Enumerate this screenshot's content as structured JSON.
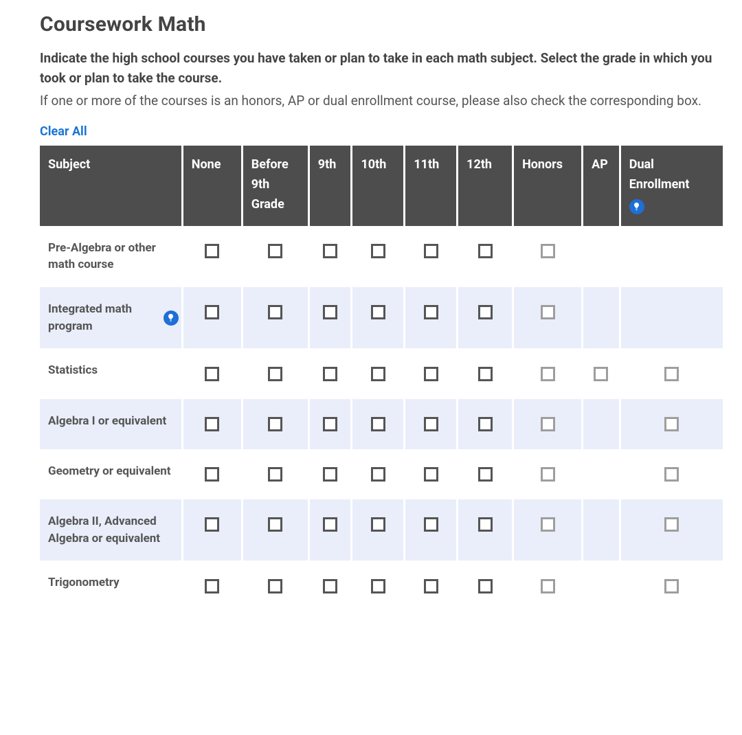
{
  "title": "Coursework Math",
  "intro_bold": "Indicate the high school courses you have taken or plan to take in each math subject. Select the grade in which you took or plan to take the course.",
  "intro_normal": "If one or more of the courses is an honors, AP or dual enrollment course, please also check the corresponding box.",
  "clear_all": "Clear All",
  "columns": [
    {
      "key": "subject",
      "label": "Subject"
    },
    {
      "key": "none",
      "label": "None"
    },
    {
      "key": "before9",
      "label": "Before 9th Grade"
    },
    {
      "key": "g9",
      "label": "9th"
    },
    {
      "key": "g10",
      "label": "10th"
    },
    {
      "key": "g11",
      "label": "11th"
    },
    {
      "key": "g12",
      "label": "12th"
    },
    {
      "key": "honors",
      "label": "Honors"
    },
    {
      "key": "ap",
      "label": "AP"
    },
    {
      "key": "dual",
      "label": "Dual Enrollment",
      "info": true
    }
  ],
  "checkbox_style": {
    "dark_cols": [
      "none",
      "before9",
      "g9",
      "g10",
      "g11",
      "g12"
    ],
    "light_cols": [
      "honors",
      "ap",
      "dual"
    ],
    "dark_border": "#555555",
    "light_border": "#9e9e9e"
  },
  "rows": [
    {
      "subject": "Pre-Algebra or other math course",
      "info": false,
      "cells": {
        "none": true,
        "before9": true,
        "g9": true,
        "g10": true,
        "g11": true,
        "g12": true,
        "honors": true,
        "ap": false,
        "dual": false
      }
    },
    {
      "subject": "Integrated math program",
      "info": true,
      "cells": {
        "none": true,
        "before9": true,
        "g9": true,
        "g10": true,
        "g11": true,
        "g12": true,
        "honors": true,
        "ap": false,
        "dual": false
      }
    },
    {
      "subject": "Statistics",
      "info": false,
      "cells": {
        "none": true,
        "before9": true,
        "g9": true,
        "g10": true,
        "g11": true,
        "g12": true,
        "honors": true,
        "ap": true,
        "dual": true
      }
    },
    {
      "subject": "Algebra I or equivalent",
      "info": false,
      "cells": {
        "none": true,
        "before9": true,
        "g9": true,
        "g10": true,
        "g11": true,
        "g12": true,
        "honors": true,
        "ap": false,
        "dual": true
      }
    },
    {
      "subject": "Geometry or equivalent",
      "info": false,
      "cells": {
        "none": true,
        "before9": true,
        "g9": true,
        "g10": true,
        "g11": true,
        "g12": true,
        "honors": true,
        "ap": false,
        "dual": true
      }
    },
    {
      "subject": "Algebra II, Advanced Algebra or equivalent",
      "info": false,
      "cells": {
        "none": true,
        "before9": true,
        "g9": true,
        "g10": true,
        "g11": true,
        "g12": true,
        "honors": true,
        "ap": false,
        "dual": true
      }
    },
    {
      "subject": "Trigonometry",
      "info": false,
      "cells": {
        "none": true,
        "before9": true,
        "g9": true,
        "g10": true,
        "g11": true,
        "g12": true,
        "honors": true,
        "ap": false,
        "dual": true
      }
    }
  ],
  "colors": {
    "header_bg": "#4d4d4d",
    "header_text": "#ffffff",
    "row_alt_bg": "#e9eefa",
    "link": "#1976d2",
    "info_badge_bg": "#1e6fd6"
  }
}
